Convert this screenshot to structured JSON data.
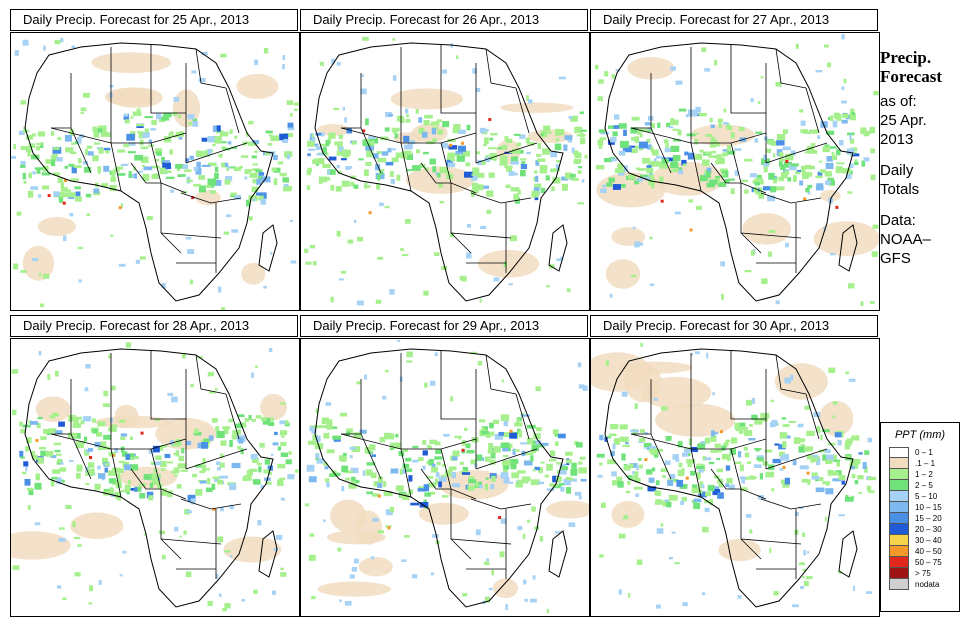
{
  "panels": [
    {
      "title": "Daily Precip. Forecast for  25 Apr., 2013"
    },
    {
      "title": "Daily Precip. Forecast for  26 Apr., 2013"
    },
    {
      "title": "Daily Precip. Forecast for  27 Apr., 2013"
    },
    {
      "title": "Daily Precip. Forecast for  28 Apr., 2013"
    },
    {
      "title": "Daily Precip. Forecast for  29 Apr., 2013"
    },
    {
      "title": "Daily Precip. Forecast for  30 Apr., 2013"
    }
  ],
  "side": {
    "title_line1": "Precip.",
    "title_line2": "Forecast",
    "asof_line1": "as of:",
    "asof_line2": "25 Apr.",
    "asof_line3": "2013",
    "daily_line1": "Daily",
    "daily_line2": "Totals",
    "data_line1": "Data:",
    "data_line2": "NOAA–",
    "data_line3": "GFS"
  },
  "legend": {
    "title": "PPT (mm)",
    "items": [
      {
        "label": "0 – 1",
        "color": "#ffffff"
      },
      {
        "label": ".1 – 1",
        "color": "#f1dcc0"
      },
      {
        "label": "1 – 2",
        "color": "#a5f08c"
      },
      {
        "label": "2 – 5",
        "color": "#6fe27a"
      },
      {
        "label": "5 – 10",
        "color": "#a6d2f5"
      },
      {
        "label": "10 – 15",
        "color": "#7db8ef"
      },
      {
        "label": "15 – 20",
        "color": "#4a8fe6"
      },
      {
        "label": "20 – 30",
        "color": "#1f5bd6"
      },
      {
        "label": "30 – 40",
        "color": "#f5d34a"
      },
      {
        "label": "40 – 50",
        "color": "#f59a2a"
      },
      {
        "label": "50 – 75",
        "color": "#e0281c"
      },
      {
        "label": "> 75",
        "color": "#9e1414"
      },
      {
        "label": "nodata",
        "color": "#cfcfcf"
      }
    ]
  }
}
